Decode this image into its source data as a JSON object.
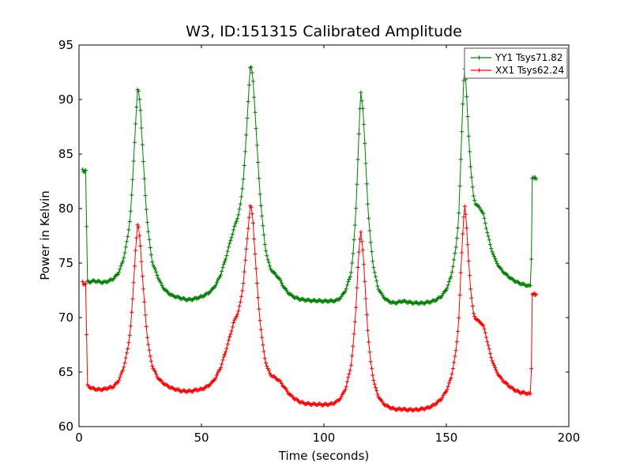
{
  "figure": {
    "background": "#ffffff"
  },
  "chart_data": {
    "type": "line",
    "title": "W3, ID:151315 Calibrated Amplitude",
    "xlabel": "Time (seconds)",
    "ylabel": "Power in Kelvin",
    "xlim": [
      0,
      200
    ],
    "ylim": [
      60,
      95
    ],
    "xticks": [
      0,
      50,
      100,
      150,
      200
    ],
    "yticks": [
      60,
      65,
      70,
      75,
      80,
      85,
      90,
      95
    ],
    "grid": false,
    "marker": "+",
    "legend": {
      "position": "upper right"
    },
    "series": [
      {
        "name": "YY1 Tsys71.82",
        "color": "#008000",
        "points": [
          [
            1.5,
            83.6
          ],
          [
            1.8,
            83.3
          ],
          [
            2.1,
            83.7
          ],
          [
            2.4,
            83.4
          ],
          [
            2.7,
            83.6
          ],
          [
            3.0,
            83.3
          ],
          [
            3.2,
            73.4
          ],
          [
            4,
            73.3
          ],
          [
            6,
            73.4
          ],
          [
            8,
            73.3
          ],
          [
            10,
            73.2
          ],
          [
            12,
            73.3
          ],
          [
            14,
            73.5
          ],
          [
            16,
            74.0
          ],
          [
            18,
            75.2
          ],
          [
            20,
            77.5
          ],
          [
            21,
            79.5
          ],
          [
            22,
            83.0
          ],
          [
            23,
            87.5
          ],
          [
            24,
            91.3
          ],
          [
            25,
            89.5
          ],
          [
            26,
            85.5
          ],
          [
            27,
            81.5
          ],
          [
            28,
            78.5
          ],
          [
            29,
            76.5
          ],
          [
            30,
            75.0
          ],
          [
            32,
            73.8
          ],
          [
            34,
            72.8
          ],
          [
            36,
            72.3
          ],
          [
            38,
            72.0
          ],
          [
            40,
            71.9
          ],
          [
            42,
            71.8
          ],
          [
            44,
            71.7
          ],
          [
            46,
            71.7
          ],
          [
            48,
            71.8
          ],
          [
            50,
            71.9
          ],
          [
            52,
            72.1
          ],
          [
            54,
            72.4
          ],
          [
            56,
            73.0
          ],
          [
            58,
            74.0
          ],
          [
            60,
            75.5
          ],
          [
            62,
            77.2
          ],
          [
            63,
            78.0
          ],
          [
            64,
            78.7
          ],
          [
            65,
            79.4
          ],
          [
            66,
            80.5
          ],
          [
            67,
            82.5
          ],
          [
            68,
            85.5
          ],
          [
            69,
            89.5
          ],
          [
            70,
            93.3
          ],
          [
            71,
            92.0
          ],
          [
            72,
            88.5
          ],
          [
            73,
            84.5
          ],
          [
            74,
            81.0
          ],
          [
            75,
            78.5
          ],
          [
            76,
            76.5
          ],
          [
            77,
            75.3
          ],
          [
            78,
            74.6
          ],
          [
            79,
            74.2
          ],
          [
            80,
            74.0
          ],
          [
            81,
            73.8
          ],
          [
            82,
            73.5
          ],
          [
            84,
            72.7
          ],
          [
            86,
            72.2
          ],
          [
            88,
            71.9
          ],
          [
            90,
            71.7
          ],
          [
            92,
            71.6
          ],
          [
            95,
            71.5
          ],
          [
            100,
            71.5
          ],
          [
            105,
            71.6
          ],
          [
            107,
            71.9
          ],
          [
            109,
            72.6
          ],
          [
            111,
            74.0
          ],
          [
            112,
            76.0
          ],
          [
            113,
            79.5
          ],
          [
            114,
            85.0
          ],
          [
            115,
            90.8
          ],
          [
            116,
            89.0
          ],
          [
            117,
            84.5
          ],
          [
            118,
            80.0
          ],
          [
            119,
            77.0
          ],
          [
            120,
            75.0
          ],
          [
            121,
            73.8
          ],
          [
            122,
            72.8
          ],
          [
            124,
            72.0
          ],
          [
            126,
            71.6
          ],
          [
            128,
            71.4
          ],
          [
            130,
            71.4
          ],
          [
            132,
            71.5
          ],
          [
            134,
            71.4
          ],
          [
            136,
            71.3
          ],
          [
            138,
            71.3
          ],
          [
            140,
            71.3
          ],
          [
            142,
            71.4
          ],
          [
            144,
            71.5
          ],
          [
            146,
            71.7
          ],
          [
            148,
            72.0
          ],
          [
            150,
            72.6
          ],
          [
            152,
            73.8
          ],
          [
            154,
            76.5
          ],
          [
            155,
            79.0
          ],
          [
            156,
            85.0
          ],
          [
            157,
            91.5
          ],
          [
            157.5,
            92.8
          ],
          [
            158,
            91.5
          ],
          [
            159,
            87.0
          ],
          [
            160,
            83.5
          ],
          [
            161,
            81.2
          ],
          [
            162,
            80.4
          ],
          [
            163,
            80.2
          ],
          [
            164,
            80.0
          ],
          [
            165,
            79.6
          ],
          [
            166,
            78.6
          ],
          [
            167,
            77.6
          ],
          [
            168,
            76.6
          ],
          [
            170,
            75.3
          ],
          [
            172,
            74.5
          ],
          [
            174,
            74.0
          ],
          [
            176,
            73.6
          ],
          [
            178,
            73.3
          ],
          [
            180,
            73.1
          ],
          [
            182,
            73.0
          ],
          [
            184,
            72.9
          ],
          [
            184.6,
            73.0
          ],
          [
            185,
            82.8
          ],
          [
            185.4,
            83.0
          ],
          [
            185.8,
            82.7
          ],
          [
            186.2,
            82.9
          ],
          [
            186.6,
            82.7
          ],
          [
            187,
            82.9
          ]
        ]
      },
      {
        "name": "XX1 Tsys62.24",
        "color": "#ff0000",
        "points": [
          [
            1.5,
            73.3
          ],
          [
            1.8,
            73.0
          ],
          [
            2.1,
            73.3
          ],
          [
            2.4,
            73.1
          ],
          [
            2.7,
            73.2
          ],
          [
            3.0,
            73.0
          ],
          [
            3.2,
            63.9
          ],
          [
            4,
            63.7
          ],
          [
            5,
            63.6
          ],
          [
            6,
            63.5
          ],
          [
            8,
            63.4
          ],
          [
            10,
            63.4
          ],
          [
            12,
            63.5
          ],
          [
            14,
            63.6
          ],
          [
            16,
            64.1
          ],
          [
            18,
            65.2
          ],
          [
            20,
            67.2
          ],
          [
            21,
            69.0
          ],
          [
            22,
            72.0
          ],
          [
            23,
            76.0
          ],
          [
            24,
            78.8
          ],
          [
            25,
            77.0
          ],
          [
            26,
            73.5
          ],
          [
            27,
            70.5
          ],
          [
            28,
            68.0
          ],
          [
            29,
            66.5
          ],
          [
            30,
            65.5
          ],
          [
            32,
            64.5
          ],
          [
            34,
            64.0
          ],
          [
            36,
            63.7
          ],
          [
            38,
            63.5
          ],
          [
            40,
            63.4
          ],
          [
            42,
            63.3
          ],
          [
            44,
            63.3
          ],
          [
            46,
            63.3
          ],
          [
            48,
            63.4
          ],
          [
            50,
            63.4
          ],
          [
            52,
            63.6
          ],
          [
            54,
            63.9
          ],
          [
            56,
            64.5
          ],
          [
            58,
            65.5
          ],
          [
            60,
            67.0
          ],
          [
            62,
            68.6
          ],
          [
            63,
            69.5
          ],
          [
            64,
            70.0
          ],
          [
            65,
            70.6
          ],
          [
            66,
            71.5
          ],
          [
            67,
            73.0
          ],
          [
            68,
            75.5
          ],
          [
            69,
            78.0
          ],
          [
            70,
            80.5
          ],
          [
            71,
            79.0
          ],
          [
            72,
            75.5
          ],
          [
            73,
            72.0
          ],
          [
            74,
            69.5
          ],
          [
            75,
            67.5
          ],
          [
            76,
            66.1
          ],
          [
            77,
            65.3
          ],
          [
            78,
            64.8
          ],
          [
            79,
            64.6
          ],
          [
            80,
            64.5
          ],
          [
            82,
            64.2
          ],
          [
            84,
            63.6
          ],
          [
            86,
            63.0
          ],
          [
            88,
            62.6
          ],
          [
            90,
            62.3
          ],
          [
            92,
            62.1
          ],
          [
            95,
            62.0
          ],
          [
            100,
            62.0
          ],
          [
            103,
            62.1
          ],
          [
            105,
            62.3
          ],
          [
            107,
            62.7
          ],
          [
            109,
            63.6
          ],
          [
            111,
            65.5
          ],
          [
            112,
            67.5
          ],
          [
            113,
            70.5
          ],
          [
            114,
            75.0
          ],
          [
            115,
            78.0
          ],
          [
            116,
            76.0
          ],
          [
            117,
            72.0
          ],
          [
            118,
            68.5
          ],
          [
            119,
            66.0
          ],
          [
            120,
            64.6
          ],
          [
            121,
            63.6
          ],
          [
            122,
            62.9
          ],
          [
            124,
            62.2
          ],
          [
            126,
            61.9
          ],
          [
            128,
            61.7
          ],
          [
            130,
            61.6
          ],
          [
            132,
            61.6
          ],
          [
            134,
            61.5
          ],
          [
            136,
            61.5
          ],
          [
            138,
            61.5
          ],
          [
            140,
            61.6
          ],
          [
            142,
            61.7
          ],
          [
            144,
            61.9
          ],
          [
            146,
            62.2
          ],
          [
            148,
            62.6
          ],
          [
            150,
            63.3
          ],
          [
            152,
            64.5
          ],
          [
            154,
            67.0
          ],
          [
            155,
            69.5
          ],
          [
            156,
            74.5
          ],
          [
            157,
            79.0
          ],
          [
            157.5,
            80.2
          ],
          [
            158,
            79.2
          ],
          [
            159,
            75.5
          ],
          [
            160,
            72.3
          ],
          [
            161,
            70.4
          ],
          [
            162,
            69.9
          ],
          [
            163,
            69.7
          ],
          [
            164,
            69.6
          ],
          [
            165,
            69.3
          ],
          [
            166,
            68.6
          ],
          [
            167,
            67.6
          ],
          [
            168,
            66.6
          ],
          [
            170,
            65.3
          ],
          [
            172,
            64.5
          ],
          [
            174,
            64.0
          ],
          [
            176,
            63.6
          ],
          [
            178,
            63.3
          ],
          [
            180,
            63.1
          ],
          [
            182,
            63.1
          ],
          [
            184,
            63.0
          ],
          [
            184.6,
            63.1
          ],
          [
            185,
            72.3
          ],
          [
            185.4,
            72.1
          ],
          [
            185.8,
            72.3
          ],
          [
            186.2,
            72.0
          ],
          [
            186.6,
            72.2
          ],
          [
            187,
            72.1
          ]
        ]
      }
    ]
  }
}
